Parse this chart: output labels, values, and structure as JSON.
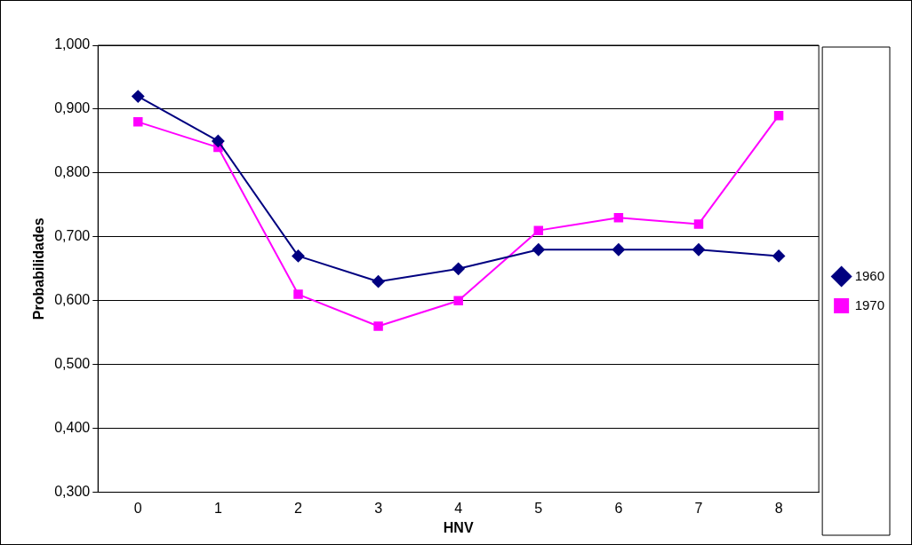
{
  "chart_data": {
    "type": "line",
    "xlabel": "HNV",
    "ylabel": "Probabilidades",
    "categories": [
      "0",
      "1",
      "2",
      "3",
      "4",
      "5",
      "6",
      "7",
      "8"
    ],
    "series": [
      {
        "name": "1960",
        "color": "#000080",
        "marker": "diamond",
        "values": [
          0.92,
          0.85,
          0.67,
          0.63,
          0.65,
          0.68,
          0.68,
          0.68,
          0.67
        ]
      },
      {
        "name": "1970",
        "color": "#ff00ff",
        "marker": "square",
        "values": [
          0.88,
          0.84,
          0.61,
          0.56,
          0.6,
          0.71,
          0.73,
          0.72,
          0.89
        ]
      }
    ],
    "ylim": [
      0.3,
      1.0
    ],
    "yticks": [
      {
        "value": 0.3,
        "label": "0,300"
      },
      {
        "value": 0.4,
        "label": "0,400"
      },
      {
        "value": 0.5,
        "label": "0,500"
      },
      {
        "value": 0.6,
        "label": "0,600"
      },
      {
        "value": 0.7,
        "label": "0,700"
      },
      {
        "value": 0.8,
        "label": "0,800"
      },
      {
        "value": 0.9,
        "label": "0,900"
      },
      {
        "value": 1.0,
        "label": "1,000"
      }
    ],
    "grid": "y",
    "legend": "right"
  }
}
